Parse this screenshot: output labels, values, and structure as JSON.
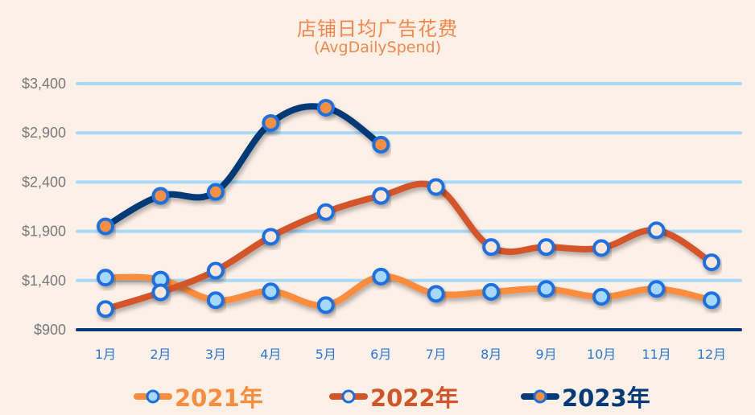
{
  "title": "店铺日均广告花费",
  "subtitle": "(AvgDailySpend)",
  "chart_data": {
    "type": "line",
    "title": "店铺日均广告花费",
    "subtitle": "(AvgDailySpend)",
    "xlabel": "",
    "ylabel": "",
    "categories": [
      "1月",
      "2月",
      "3月",
      "4月",
      "5月",
      "6月",
      "7月",
      "8月",
      "9月",
      "10月",
      "11月",
      "12月"
    ],
    "yticks": [
      "$900",
      "$1,400",
      "$1,900",
      "$2,400",
      "$2,900",
      "$3,400"
    ],
    "ytick_values": [
      900,
      1400,
      1900,
      2400,
      2900,
      3400
    ],
    "ylim": [
      900,
      3400
    ],
    "grid": true,
    "legend_position": "bottom",
    "series": [
      {
        "name": "2021年",
        "color": "#fb8c3c",
        "marker_fill": "#a6d8fb",
        "values": [
          1430,
          1410,
          1200,
          1290,
          1150,
          1440,
          1265,
          1285,
          1315,
          1235,
          1315,
          1200
        ]
      },
      {
        "name": "2022年",
        "color": "#d4542a",
        "marker_fill": "#fbe6da",
        "values": [
          1110,
          1280,
          1500,
          1845,
          2095,
          2260,
          2350,
          1740,
          1740,
          1730,
          1910,
          1585
        ]
      },
      {
        "name": "2023年",
        "color": "#003a78",
        "marker_fill": "#f78f3f",
        "values": [
          1950,
          2260,
          2300,
          3000,
          3155,
          2780,
          null,
          null,
          null,
          null,
          null,
          null
        ]
      }
    ]
  },
  "colors": {
    "background": "#fcf0e7",
    "title": "#f5874a",
    "gridline": "#a9d8f8",
    "axis": "#003a78",
    "marker_border": "#1a6fe0",
    "xtick": "#2a77d6",
    "ytick": "#7a7a7a"
  },
  "legend": [
    {
      "label": "2021年"
    },
    {
      "label": "2022年"
    },
    {
      "label": "2023年"
    }
  ]
}
